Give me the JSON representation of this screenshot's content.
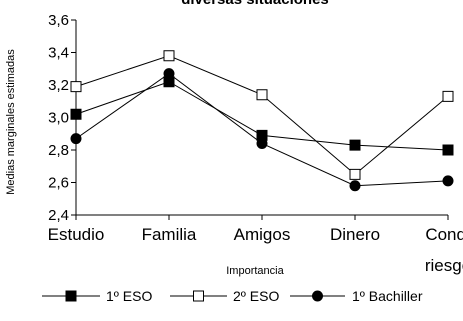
{
  "chart_data": {
    "type": "line",
    "title": "diversas situaciones",
    "xlabel": "Importancia",
    "ylabel": "Medias marginales estimadas",
    "categories": [
      "Estudio",
      "Familia",
      "Amigos",
      "Dinero",
      "Cond. riesgo"
    ],
    "category_lines": [
      [
        "Estudio"
      ],
      [
        "Familia"
      ],
      [
        "Amigos"
      ],
      [
        "Dinero"
      ],
      [
        "Cond.",
        "riesgo"
      ]
    ],
    "ylim": [
      2.4,
      3.6
    ],
    "yticks": [
      "2,4",
      "2,6",
      "2,8",
      "3,0",
      "3,2",
      "3,4",
      "3,6"
    ],
    "ytick_values": [
      2.4,
      2.6,
      2.8,
      3.0,
      3.2,
      3.4,
      3.6
    ],
    "grid": false,
    "legend_position": "bottom",
    "series": [
      {
        "name": "1º ESO",
        "marker": "filled-square",
        "values": [
          3.02,
          3.22,
          2.89,
          2.83,
          2.8
        ]
      },
      {
        "name": "2º ESO",
        "marker": "open-square",
        "values": [
          3.19,
          3.38,
          3.14,
          2.65,
          3.13
        ]
      },
      {
        "name": "1º Bachiller",
        "marker": "filled-circle",
        "values": [
          2.87,
          3.27,
          2.84,
          2.58,
          2.61
        ]
      }
    ]
  }
}
